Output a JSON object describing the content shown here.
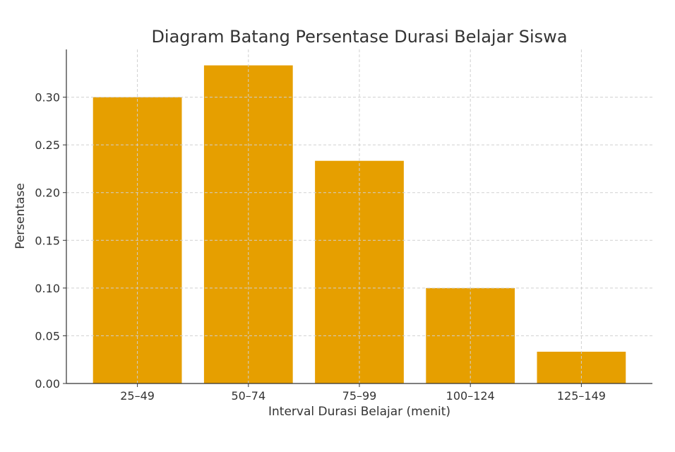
{
  "chart_data": {
    "type": "bar",
    "title": "Diagram Batang Persentase Durasi Belajar Siswa",
    "xlabel": "Interval Durasi Belajar (menit)",
    "ylabel": "Persentase",
    "categories": [
      "25–49",
      "50–74",
      "75–99",
      "100–124",
      "125–149"
    ],
    "values": [
      0.3,
      0.3333,
      0.2333,
      0.1,
      0.0333
    ],
    "ylim": [
      0,
      0.35
    ],
    "yticks": [
      0.0,
      0.05,
      0.1,
      0.15,
      0.2,
      0.25,
      0.3
    ],
    "ytick_labels": [
      "0.00",
      "0.05",
      "0.10",
      "0.15",
      "0.20",
      "0.25",
      "0.30"
    ],
    "grid": true,
    "bar_color": "#E69F00"
  }
}
